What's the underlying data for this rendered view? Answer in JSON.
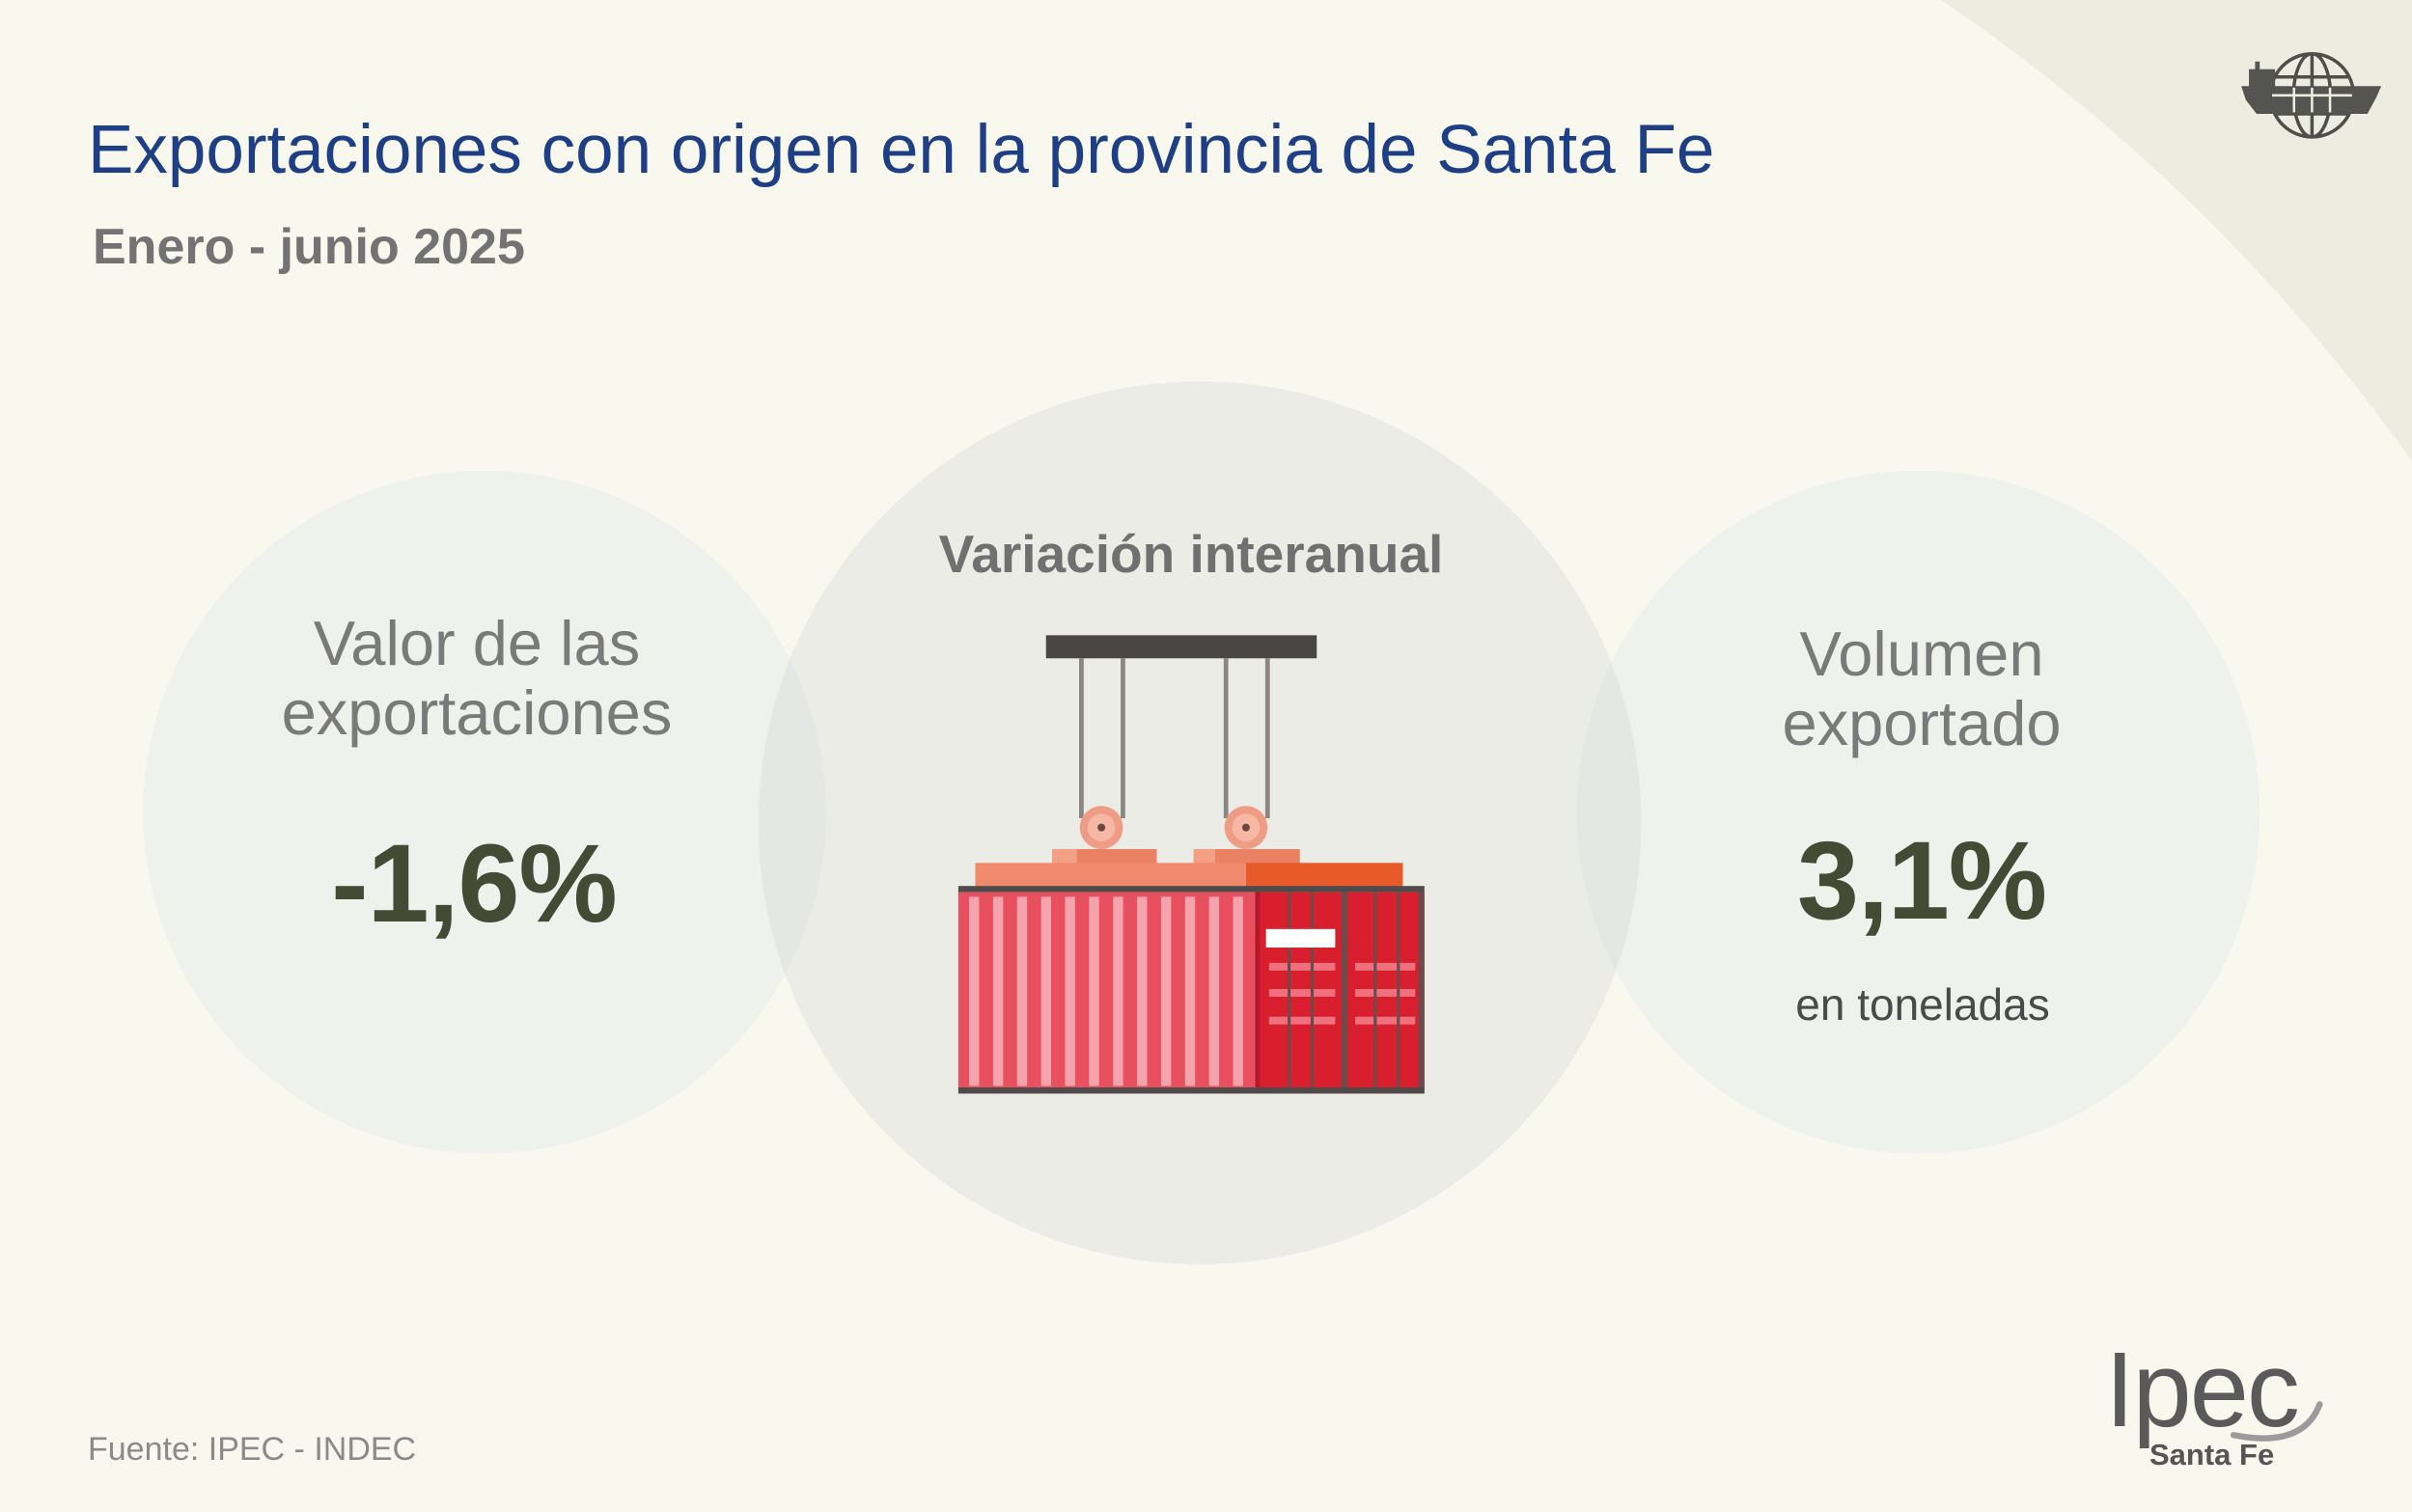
{
  "title": "Exportaciones con origen en la provincia de Santa Fe",
  "subtitle": "Enero - junio 2025",
  "center": {
    "heading": "Variación interanual",
    "icon": "shipping-container-icon"
  },
  "export_value": {
    "label": [
      "Valor de las",
      "exportaciones"
    ],
    "value": "-1,6%"
  },
  "export_volume": {
    "label": [
      "Volumen",
      "exportado"
    ],
    "value": "3,1%",
    "note": "en toneladas"
  },
  "source": "Fuente: IPEC - INDEC",
  "logo": {
    "wordmark": "Ipec",
    "tagline": "Santa Fe"
  },
  "header_icon": "globe-ship-icon",
  "colors": {
    "title": "#1e3f85",
    "value": "#454a34",
    "background": "#f8f8ee",
    "corner": "#ecece0",
    "container_red": "#d91f2d"
  }
}
